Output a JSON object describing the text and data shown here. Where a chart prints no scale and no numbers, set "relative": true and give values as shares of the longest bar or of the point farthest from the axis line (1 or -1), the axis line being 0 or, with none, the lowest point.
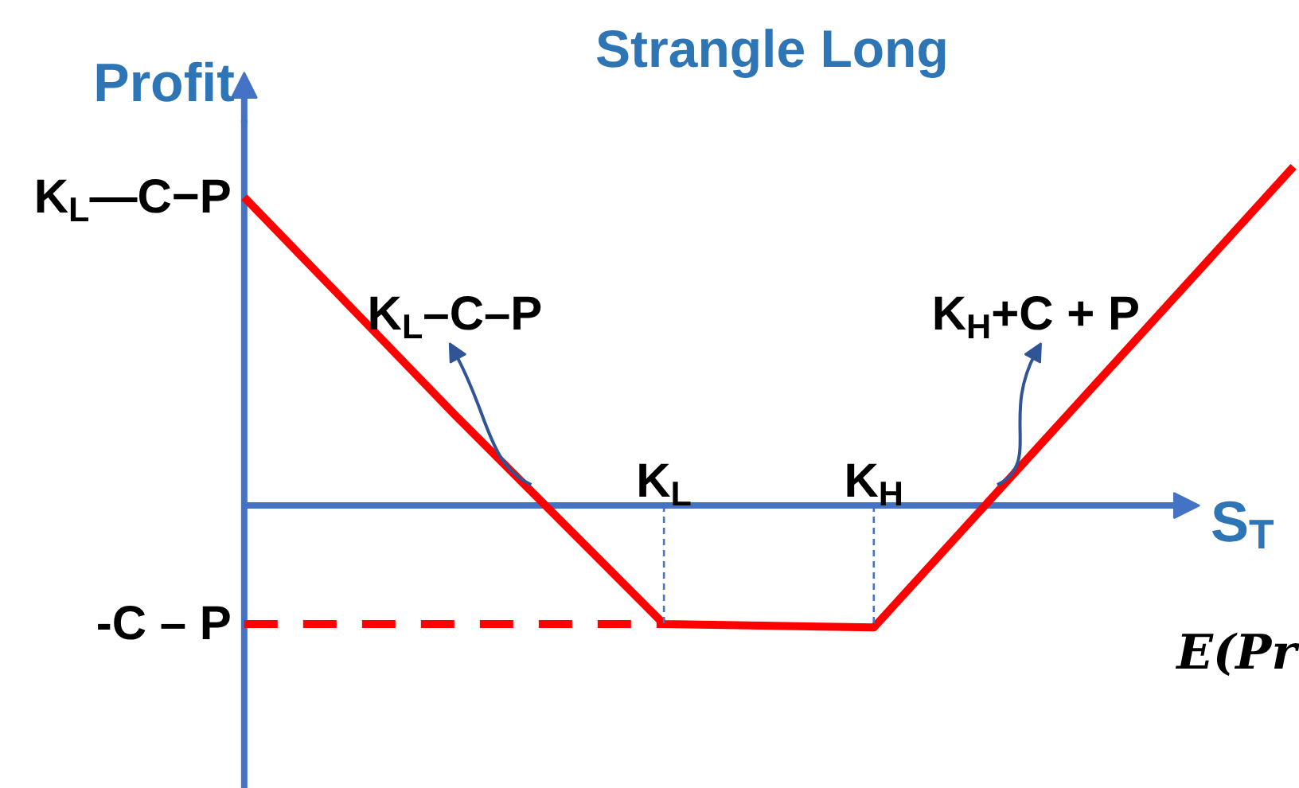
{
  "chart_data": {
    "type": "line",
    "relative": true,
    "title": "Strangle Long",
    "xlabel": "S$_{T}$",
    "ylabel": "Profit",
    "line_style": "solid",
    "categories": [
      null,
      null,
      "K$_{L}$",
      "K$_{H}$",
      null,
      null
    ],
    "series": [
      {
        "color": "#ff0000",
        "values": [
          0.91,
          0.27,
          -0.35,
          -0.36,
          0.32,
          1
        ]
      },
      {
        "color": "#ff0000",
        "line_style": "dashed",
        "values": [
          -0.35,
          -0.35,
          -0.35,
          null,
          null,
          null
        ]
      },
      {
        "color": "#4472c4",
        "line_style": "dashed",
        "x": [
          "K$_{L}$",
          "K$_{L}$"
        ],
        "values": [
          0,
          -0.35
        ]
      },
      {
        "color": "#4472c4",
        "line_style": "dashed",
        "x": [
          "K$_{H}$",
          "K$_{H}$"
        ],
        "values": [
          0,
          -0.36
        ]
      }
    ],
    "annotations": [
      "K$_{L}$—C−P",
      "-C – P",
      "K$_{L}$–C–P",
      "K$_{H}$+C + P",
      "E(Pr"
    ]
  }
}
